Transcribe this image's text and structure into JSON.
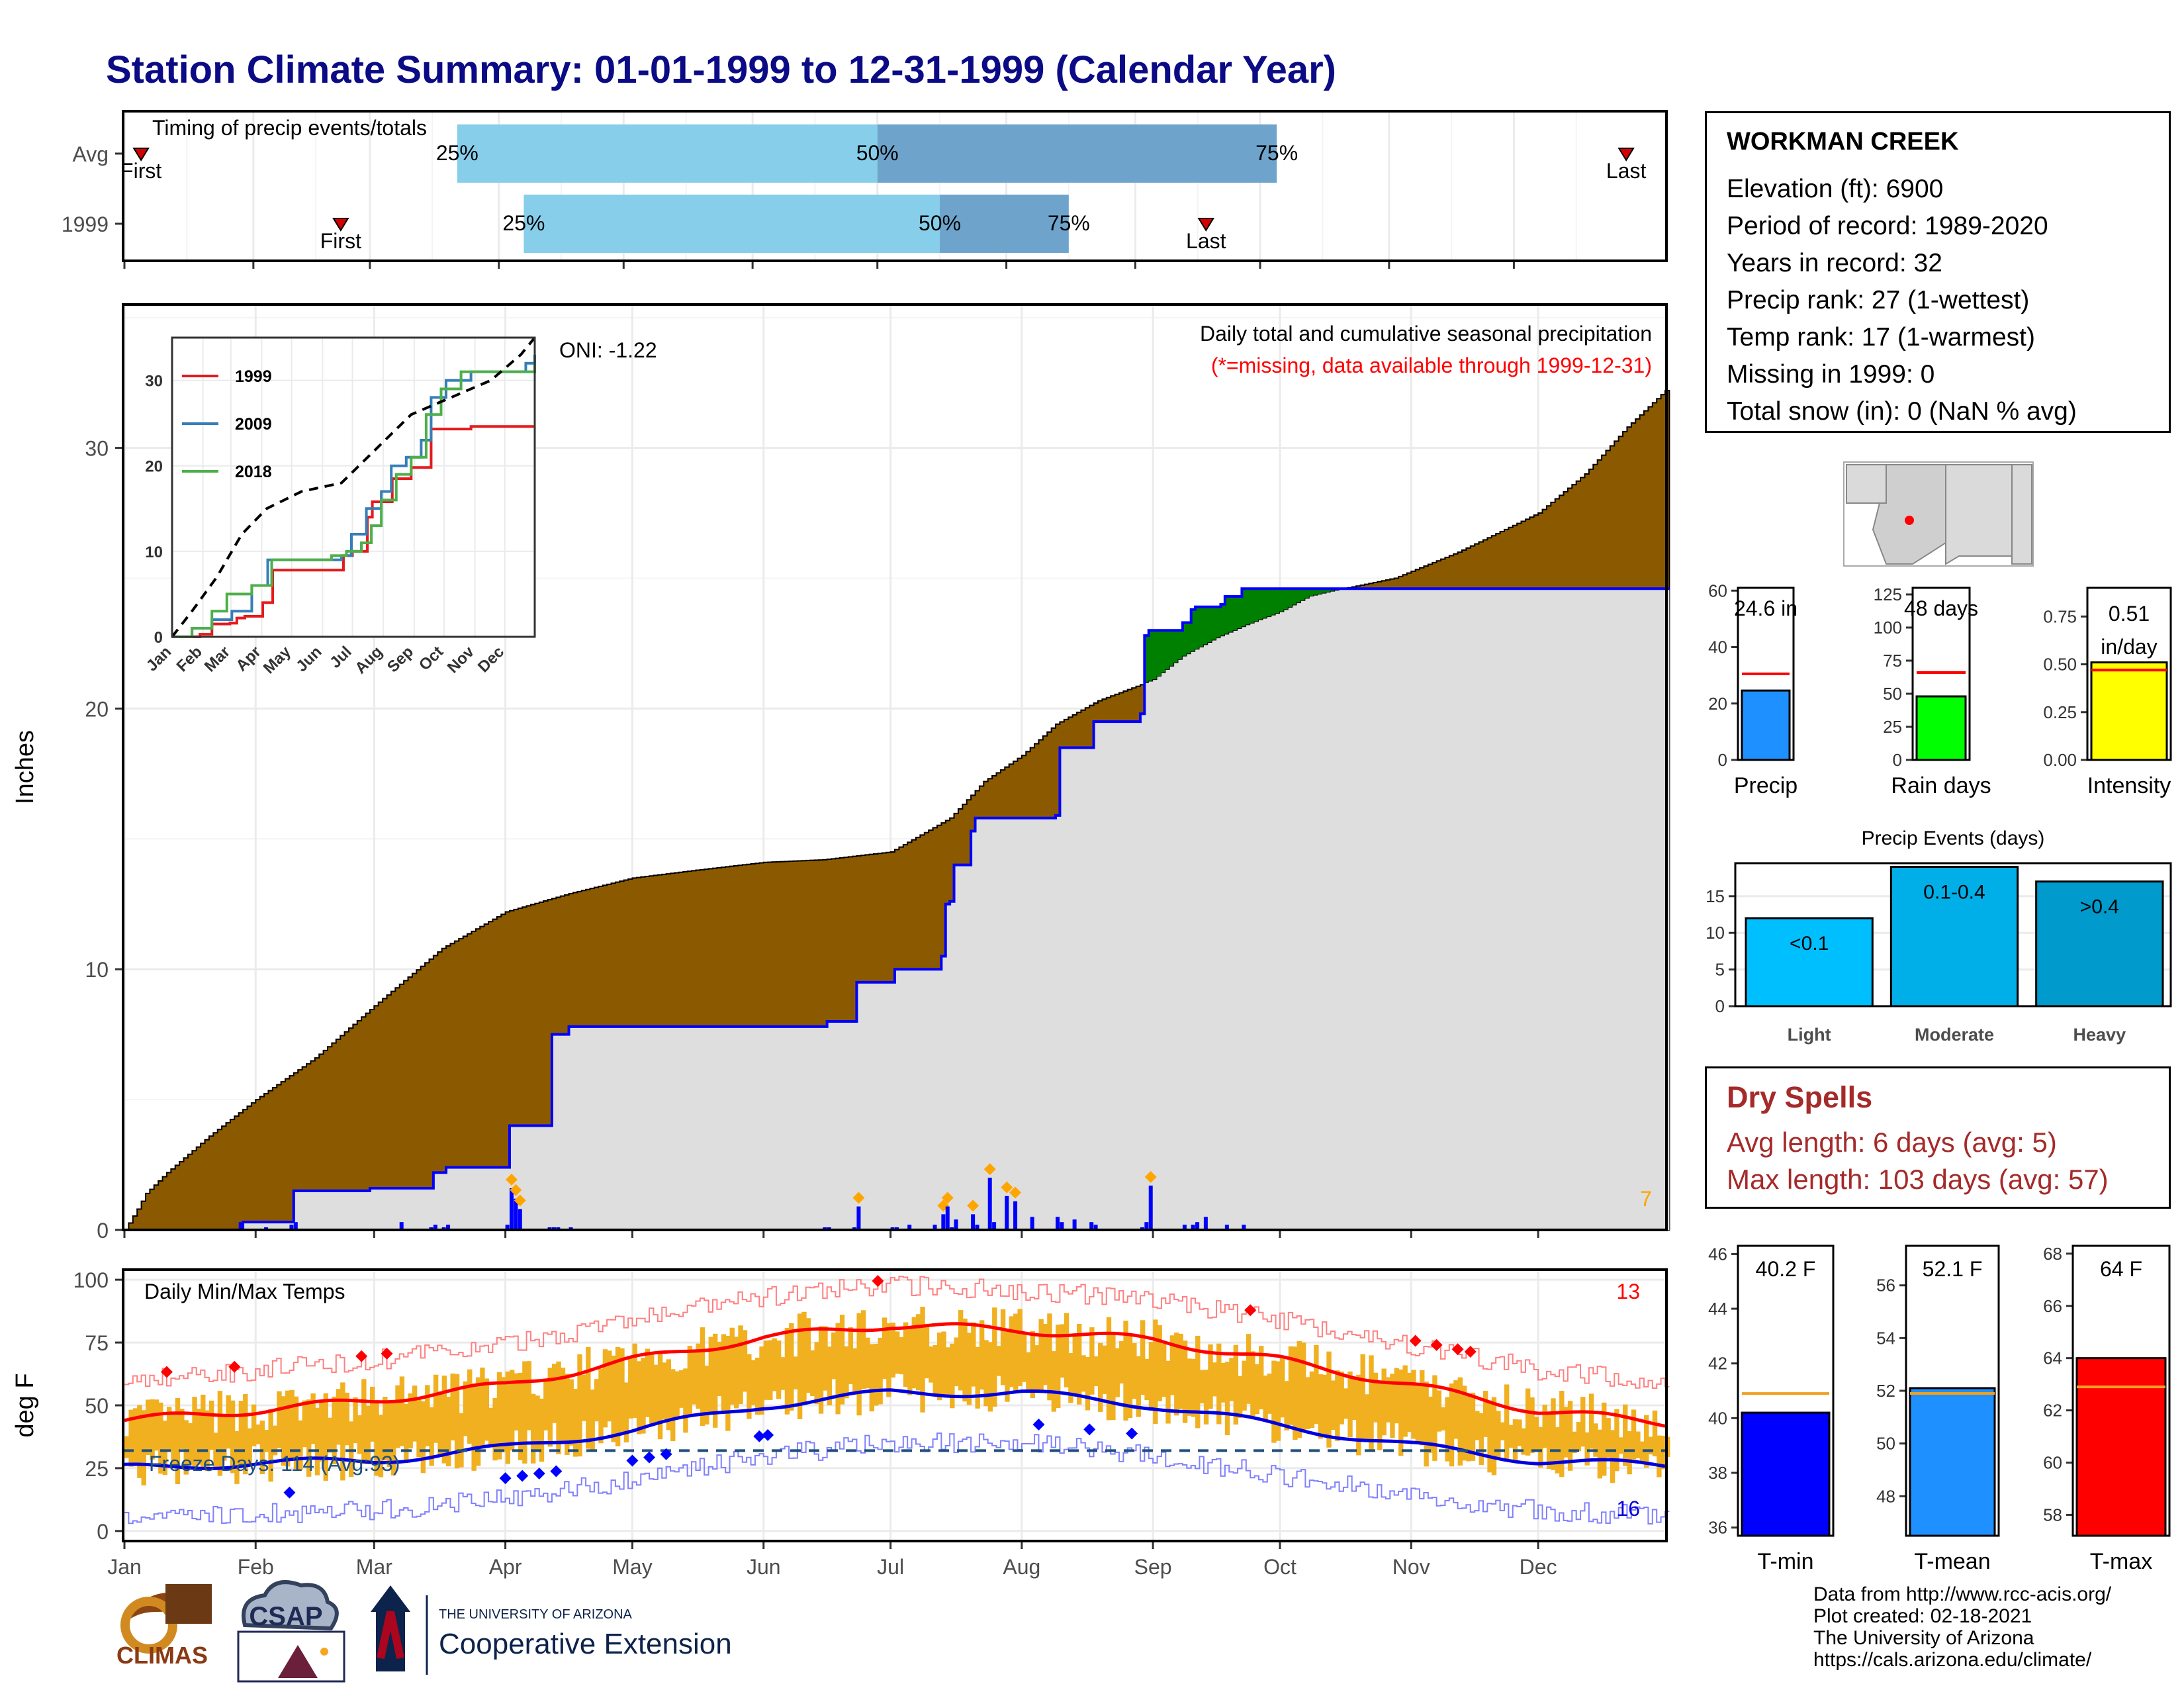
{
  "title": "Station Climate Summary: 01-01-1999 to 12-31-1999 (Calendar Year)",
  "station": {
    "name": "WORKMAN CREEK",
    "lines": [
      "Elevation (ft): 6900",
      "Period of record: 1989-2020",
      "Years in record: 32",
      "Precip rank: 27 (1-wettest)",
      "Temp rank: 17 (1-warmest)",
      "Missing in 1999: 0",
      "Total snow (in): 0 (NaN % avg)"
    ]
  },
  "months": [
    "Jan",
    "Feb",
    "Mar",
    "Apr",
    "May",
    "Jun",
    "Jul",
    "Aug",
    "Sep",
    "Oct",
    "Nov",
    "Dec"
  ],
  "timing": {
    "title": "Timing of precip events/totals",
    "rows": [
      {
        "label": "Avg",
        "first": "First",
        "last": "Last",
        "p25": "25%",
        "p50": "50%",
        "p75": "75%",
        "first_day": 4,
        "q25_day": 80,
        "q50_day": 181,
        "q75_day": 277,
        "last_day": 361
      },
      {
        "label": "1999",
        "first": "First",
        "last": "Last",
        "p25": "25%",
        "p50": "50%",
        "p75": "75%",
        "first_day": 52,
        "q25_day": 96,
        "q50_day": 196,
        "q75_day": 227,
        "last_day": 260
      }
    ],
    "colors": {
      "light": "#87ceeb",
      "dark": "#6ea4cc",
      "marker": "#d40000"
    }
  },
  "precip_chart": {
    "ylabel": "Inches",
    "oni": "ONI: -1.22",
    "caption": "Daily total and cumulative seasonal precipitation",
    "missing_note": "(*=missing, data available through 1999-12-31)",
    "count_label": "7",
    "yticks": [
      0,
      10,
      20,
      30
    ],
    "ylim": [
      0,
      35.5
    ],
    "colors": {
      "deficit": "#8b5a00",
      "surplus": "#008000",
      "observed_fill": "#dedede",
      "observed_line": "#0000ff",
      "daily_bar": "#0000ff",
      "marker": "#ffa500"
    }
  },
  "chart_data": [
    {
      "type": "area",
      "title": "Daily total and cumulative seasonal precipitation",
      "ylabel": "Inches",
      "ylim": [
        0,
        35.5
      ],
      "series": [
        {
          "name": "average cumulative",
          "x": [
            0,
            3,
            5,
            10,
            20,
            31,
            45,
            59,
            75,
            90,
            105,
            120,
            135,
            151,
            165,
            181,
            195,
            203,
            212,
            220,
            230,
            243,
            250,
            258,
            265,
            273,
            280,
            288,
            300,
            315,
            334,
            345,
            355,
            364
          ],
          "y": [
            0,
            0.8,
            1.4,
            2.2,
            3.6,
            5.0,
            6.6,
            8.6,
            10.8,
            12.2,
            12.9,
            13.5,
            13.8,
            14.1,
            14.2,
            14.5,
            15.8,
            17.2,
            18.2,
            19.4,
            20.3,
            21.1,
            22.0,
            22.7,
            23.2,
            23.7,
            24.3,
            24.6,
            25.0,
            26.0,
            27.5,
            29.0,
            30.8,
            32.2
          ]
        },
        {
          "name": "1999 cumulative",
          "x": [
            0,
            27,
            28,
            39,
            40,
            58,
            65,
            72,
            73,
            75,
            76,
            90,
            91,
            100,
            101,
            105,
            130,
            150,
            165,
            166,
            172,
            173,
            181,
            182,
            193,
            194,
            195,
            196,
            200,
            201,
            208,
            220,
            221,
            228,
            229,
            240,
            241,
            242,
            250,
            252,
            253,
            259,
            260,
            264,
            268,
            270,
            271,
            300,
            330,
            364
          ],
          "y": [
            0,
            0,
            0.3,
            0.3,
            1.5,
            1.6,
            1.6,
            1.6,
            2.2,
            2.2,
            2.4,
            2.4,
            4.0,
            4.0,
            7.5,
            7.8,
            7.8,
            7.8,
            7.8,
            8.0,
            8.0,
            9.5,
            9.5,
            10.0,
            10.5,
            12.5,
            12.6,
            14.0,
            15.3,
            15.8,
            15.8,
            15.9,
            18.5,
            18.5,
            19.5,
            19.8,
            22.8,
            23.0,
            23.3,
            23.8,
            23.9,
            24.0,
            24.3,
            24.6,
            24.6,
            24.6,
            24.6,
            24.6,
            24.6,
            24.6
          ]
        },
        {
          "name": "daily precip",
          "x": [
            27,
            33,
            39,
            40,
            65,
            72,
            73,
            75,
            76,
            90,
            91,
            92,
            93,
            100,
            101,
            102,
            105,
            150,
            165,
            166,
            172,
            173,
            181,
            182,
            185,
            191,
            193,
            194,
            195,
            196,
            200,
            201,
            204,
            205,
            208,
            210,
            214,
            220,
            221,
            224,
            228,
            229,
            240,
            241,
            242,
            250,
            252,
            253,
            255,
            260,
            264
          ],
          "y": [
            0.3,
            0.1,
            0.2,
            0.3,
            0.3,
            0.1,
            0.2,
            0.1,
            0.2,
            0.2,
            1.6,
            1.2,
            0.8,
            0.1,
            0.1,
            0.1,
            0.1,
            0.05,
            0.1,
            0.1,
            0.1,
            0.9,
            0.1,
            0.1,
            0.2,
            0.2,
            0.6,
            0.9,
            0.1,
            0.4,
            0.6,
            0.2,
            2.0,
            0.3,
            1.3,
            1.1,
            0.5,
            0.5,
            0.3,
            0.4,
            0.3,
            0.2,
            0.1,
            0.3,
            1.7,
            0.2,
            0.2,
            0.3,
            0.5,
            0.2,
            0.2
          ]
        }
      ]
    },
    {
      "type": "line",
      "title": "",
      "categories": [
        "Jan",
        "Feb",
        "Mar",
        "Apr",
        "May",
        "Jun",
        "Jul",
        "Aug",
        "Sep",
        "Oct",
        "Nov",
        "Dec"
      ],
      "ylim": [
        0,
        35
      ],
      "series": [
        {
          "name": "1999",
          "x": [
            0,
            27,
            28,
            39,
            40,
            58,
            65,
            73,
            90,
            91,
            100,
            101,
            150,
            172,
            181,
            196,
            201,
            208,
            221,
            240,
            260,
            300,
            364
          ],
          "y": [
            0,
            0,
            0.3,
            0.3,
            1.5,
            1.6,
            2.2,
            2.4,
            2.4,
            4.0,
            4.0,
            7.8,
            7.8,
            9.5,
            10.0,
            14.0,
            15.8,
            15.8,
            18.5,
            19.8,
            24.3,
            24.6,
            24.6
          ]
        },
        {
          "name": "2009",
          "x": [
            0,
            20,
            40,
            60,
            80,
            96,
            110,
            130,
            150,
            170,
            180,
            195,
            210,
            220,
            235,
            250,
            260,
            275,
            300,
            340,
            355,
            364
          ],
          "y": [
            0,
            1,
            2,
            3,
            6,
            9,
            9,
            9,
            9,
            9.5,
            12,
            15,
            17,
            20,
            21,
            23,
            28,
            30,
            31,
            31,
            32,
            33
          ]
        },
        {
          "name": "2018",
          "x": [
            0,
            20,
            40,
            55,
            80,
            100,
            120,
            140,
            160,
            175,
            190,
            200,
            210,
            225,
            240,
            255,
            270,
            290,
            320,
            345,
            364
          ],
          "y": [
            0,
            1,
            3,
            5,
            6,
            9,
            9,
            9,
            9.5,
            10,
            11,
            13,
            16,
            19,
            21,
            26,
            29,
            31,
            31,
            31,
            32
          ]
        },
        {
          "name": "average",
          "x": [
            0,
            20,
            45,
            70,
            95,
            130,
            170,
            205,
            240,
            280,
            320,
            350,
            364
          ],
          "y": [
            0,
            3,
            7,
            12,
            15,
            17,
            18,
            22,
            26,
            28,
            30,
            33,
            35
          ]
        }
      ]
    },
    {
      "type": "line",
      "title": "Daily Min/Max Temps",
      "ylabel": "deg F",
      "ylim": [
        0,
        100
      ],
      "series": [
        {
          "name": "avg max",
          "x": [
            0,
            31,
            59,
            90,
            120,
            151,
            181,
            212,
            243,
            273,
            304,
            334,
            364
          ],
          "y": [
            44,
            48,
            52,
            58,
            68,
            77,
            82,
            80,
            76,
            68,
            58,
            48,
            43
          ]
        },
        {
          "name": "avg min",
          "x": [
            0,
            31,
            59,
            90,
            120,
            151,
            181,
            212,
            243,
            273,
            304,
            334,
            364
          ],
          "y": [
            25,
            27,
            28,
            33,
            40,
            50,
            55,
            55,
            50,
            42,
            34,
            28,
            26
          ]
        }
      ]
    },
    {
      "type": "bar",
      "categories": [
        "Light",
        "Moderate",
        "Heavy"
      ],
      "values": [
        12,
        19,
        17
      ],
      "labels": [
        "<0.1",
        "0.1-0.4",
        ">0.4"
      ],
      "title": "Precip Events (days)",
      "ylim": [
        0,
        19.5
      ]
    }
  ],
  "temp_chart": {
    "ylabel": "deg F",
    "title": "Daily Min/Max Temps",
    "count_high": "13",
    "count_low": "16",
    "freeze": "Freeze Days: 114 (Avg:93)",
    "freeze_level": 32,
    "yticks": [
      0,
      25,
      50,
      75,
      100
    ],
    "colors": {
      "bar": "#f0b020",
      "avg_max": "#ff0000",
      "avg_min": "#0000e0",
      "record_max": "#ff8080",
      "record_min": "#8080ff",
      "freeze": "#1f4f7f"
    }
  },
  "mini_bars": [
    {
      "label": "Precip",
      "value_text": "24.6 in",
      "value": 24.6,
      "avg": 30.5,
      "ylim": [
        0,
        61
      ],
      "yticks": [
        0,
        20,
        40,
        60
      ],
      "color": "#1e90ff"
    },
    {
      "label": "Rain days",
      "value_text": "48 days",
      "value": 48,
      "avg": 66,
      "ylim": [
        0,
        130
      ],
      "yticks": [
        0,
        25,
        50,
        75,
        100,
        125
      ],
      "color": "#00ff00"
    },
    {
      "label": "Intensity",
      "value_text": "0.51 in/day",
      "value_line1": "0.51",
      "value_line2": "in/day",
      "value": 0.51,
      "avg": 0.47,
      "ylim": [
        0,
        0.9
      ],
      "yticks": [
        "0.00",
        "0.25",
        "0.50",
        "0.75"
      ],
      "color": "#ffff00"
    }
  ],
  "events": {
    "title": "Precip Events (days)",
    "yticks": [
      0,
      5,
      10,
      15
    ],
    "colors": [
      "#00bfff",
      "#00aee8",
      "#009acd"
    ]
  },
  "dry_spells": {
    "title": "Dry Spells",
    "avg": "Avg length: 6 days (avg: 5)",
    "max": "Max length: 103 days (avg: 57)"
  },
  "temp_bars": [
    {
      "label": "T-min",
      "value_text": "40.2 F",
      "value": 40.2,
      "avg": 40.9,
      "ylim": [
        35.7,
        46.3
      ],
      "yticks": [
        36,
        38,
        40,
        42,
        44,
        46
      ],
      "color": "#0000ff"
    },
    {
      "label": "T-mean",
      "value_text": "52.1 F",
      "value": 52.1,
      "avg": 51.9,
      "ylim": [
        46.5,
        57.5
      ],
      "yticks": [
        48,
        50,
        52,
        54,
        56
      ],
      "color": "#1e90ff"
    },
    {
      "label": "T-max",
      "value_text": "64 F",
      "value": 64.0,
      "avg": 62.9,
      "ylim": [
        57.2,
        68.3
      ],
      "yticks": [
        58,
        60,
        62,
        64,
        66,
        68
      ],
      "color": "#ff0000"
    }
  ],
  "credits": [
    "Data from http://www.rcc-acis.org/",
    "Plot created: 02-18-2021",
    "The University of Arizona",
    "https://cals.arizona.edu/climate/"
  ],
  "logos": {
    "climas": "CLIMAS",
    "csap": "CSAP",
    "ua_line1": "THE UNIVERSITY OF ARIZONA",
    "ua_line2": "Cooperative Extension"
  }
}
